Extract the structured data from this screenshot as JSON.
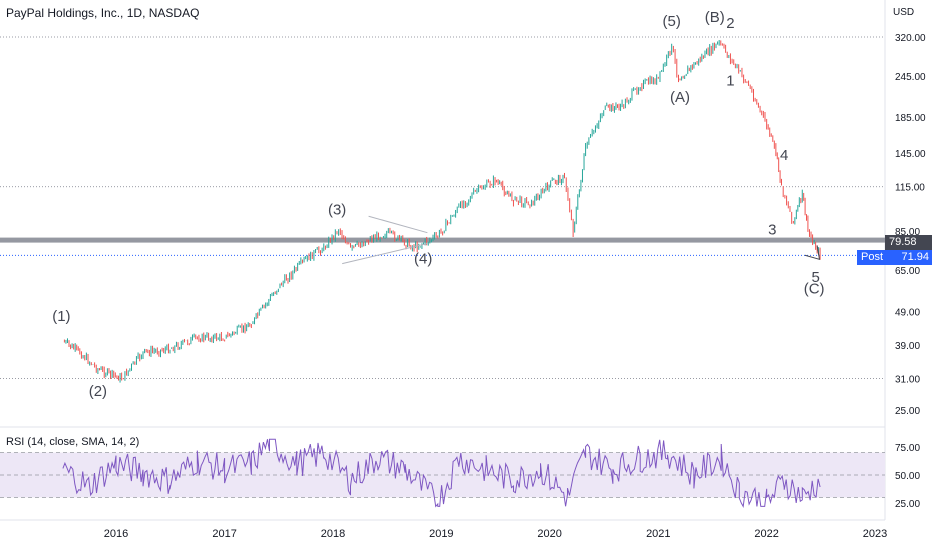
{
  "header": {
    "title": "PayPal Holdings, Inc., 1D, NASDAQ",
    "currency": "USD"
  },
  "price_tag": {
    "value": "79.58"
  },
  "post_tag": {
    "label": "Post",
    "value": "71.94"
  },
  "rsi": {
    "label": "RSI (14, close, SMA, 14, 2)"
  },
  "colors": {
    "up": "#26a69a",
    "down": "#ef5350",
    "rsi_line": "#7e57c2",
    "rsi_band": "#ede7f6",
    "level": "#9598a1",
    "post": "#2962ff"
  },
  "chart_data": [
    {
      "type": "line",
      "scale": "log",
      "title": "PayPal Holdings, Inc., 1D, NASDAQ",
      "ylabel": "USD",
      "x_ticks": [
        "2016",
        "2017",
        "2018",
        "2019",
        "2020",
        "2021",
        "2022",
        "2023"
      ],
      "y_ticks": [
        320.0,
        245.0,
        185.0,
        145.0,
        115.0,
        85.0,
        65.0,
        49.0,
        39.0,
        31.0,
        25.0
      ],
      "ylim": [
        23,
        380
      ],
      "series": [
        {
          "x": [
            "2015-07-06",
            "2015-09-01",
            "2015-11-01",
            "2016-01-20",
            "2016-04-01",
            "2016-07-01",
            "2016-10-01",
            "2017-01-01",
            "2017-04-01",
            "2017-07-01",
            "2017-10-01",
            "2017-12-01",
            "2018-01-20",
            "2018-03-01",
            "2018-05-01",
            "2018-07-01",
            "2018-10-01",
            "2018-12-20",
            "2019-03-01",
            "2019-05-01",
            "2019-07-01",
            "2019-09-01",
            "2019-11-01",
            "2020-01-15",
            "2020-02-20",
            "2020-03-20",
            "2020-05-01",
            "2020-07-01",
            "2020-09-01",
            "2020-11-01",
            "2021-01-01",
            "2021-02-15",
            "2021-03-10",
            "2021-05-01",
            "2021-07-25",
            "2021-09-01",
            "2021-11-01",
            "2022-01-01",
            "2022-02-01",
            "2022-02-20",
            "2022-04-01",
            "2022-05-01",
            "2022-05-20",
            "2022-06-10",
            "2022-06-30"
          ],
          "values": [
            40,
            37,
            33,
            31,
            37,
            38,
            41,
            41,
            45,
            58,
            70,
            76,
            86,
            75,
            80,
            84,
            76,
            82,
            100,
            112,
            120,
            105,
            103,
            120,
            122,
            85,
            150,
            195,
            200,
            230,
            240,
            300,
            240,
            265,
            308,
            275,
            230,
            175,
            145,
            115,
            90,
            110,
            85,
            78,
            72
          ]
        }
      ],
      "horizontal_levels": [
        320.0,
        115.0,
        79.58,
        71.94,
        31.0
      ],
      "annotations": [
        {
          "text": "(1)",
          "x": "2015-07-01",
          "y": 46
        },
        {
          "text": "(2)",
          "x": "2015-11-01",
          "y": 27.5
        },
        {
          "text": "(3)",
          "x": "2018-01-15",
          "y": 95
        },
        {
          "text": "(4)",
          "x": "2018-11-01",
          "y": 68
        },
        {
          "text": "(5)",
          "x": "2021-02-15",
          "y": 345
        },
        {
          "text": "(A)",
          "x": "2021-03-15",
          "y": 205
        },
        {
          "text": "(B)",
          "x": "2021-07-10",
          "y": 355
        },
        {
          "text": "2",
          "x": "2021-09-01",
          "y": 340
        },
        {
          "text": "1",
          "x": "2021-09-01",
          "y": 230
        },
        {
          "text": "4",
          "x": "2022-03-01",
          "y": 138
        },
        {
          "text": "3",
          "x": "2022-01-20",
          "y": 83
        },
        {
          "text": "5",
          "x": "2022-06-15",
          "y": 60
        },
        {
          "text": "(C)",
          "x": "2022-06-10",
          "y": 55.5
        }
      ]
    },
    {
      "type": "line",
      "title": "RSI (14, close, SMA, 14, 2)",
      "y_ticks": [
        75.0,
        50.0,
        25.0
      ],
      "ylim": [
        20,
        85
      ],
      "band": [
        30,
        70
      ],
      "series": [
        {
          "x": [
            "2015-07-06",
            "2015-10-01",
            "2016-01-01",
            "2016-04-01",
            "2016-07-01",
            "2016-10-01",
            "2017-01-01",
            "2017-04-01",
            "2017-06-01",
            "2017-09-01",
            "2017-12-01",
            "2018-03-01",
            "2018-06-01",
            "2018-09-01",
            "2018-12-20",
            "2019-03-01",
            "2019-06-01",
            "2019-09-01",
            "2019-12-01",
            "2020-03-01",
            "2020-05-01",
            "2020-08-01",
            "2020-11-01",
            "2021-02-01",
            "2021-05-01",
            "2021-08-01",
            "2021-10-01",
            "2022-01-01",
            "2022-03-01",
            "2022-05-01",
            "2022-06-30"
          ],
          "values": [
            55,
            40,
            60,
            52,
            45,
            63,
            55,
            60,
            80,
            60,
            70,
            45,
            65,
            55,
            25,
            65,
            55,
            45,
            55,
            30,
            70,
            55,
            65,
            70,
            50,
            65,
            35,
            25,
            45,
            30,
            45
          ]
        }
      ]
    }
  ]
}
